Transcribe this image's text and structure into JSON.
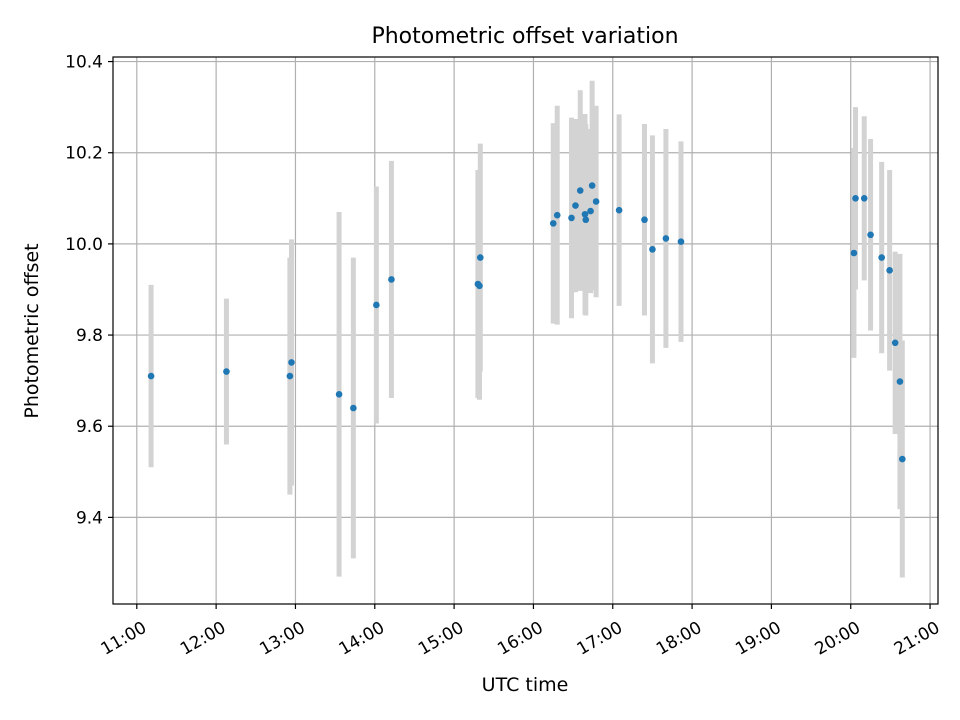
{
  "chart_data": {
    "type": "scatter",
    "title": "Photometric offset variation",
    "xlabel": "UTC time",
    "ylabel": "Photometric offset",
    "x_unit": "hours",
    "xlim": [
      10.7,
      21.1
    ],
    "ylim": [
      9.21,
      10.41
    ],
    "x_ticks": [
      {
        "value": 11,
        "label": "11:00"
      },
      {
        "value": 12,
        "label": "12:00"
      },
      {
        "value": 13,
        "label": "13:00"
      },
      {
        "value": 14,
        "label": "14:00"
      },
      {
        "value": 15,
        "label": "15:00"
      },
      {
        "value": 16,
        "label": "16:00"
      },
      {
        "value": 17,
        "label": "17:00"
      },
      {
        "value": 18,
        "label": "18:00"
      },
      {
        "value": 19,
        "label": "19:00"
      },
      {
        "value": 20,
        "label": "20:00"
      },
      {
        "value": 21,
        "label": "21:00"
      }
    ],
    "y_ticks": [
      {
        "value": 9.4,
        "label": "9.4"
      },
      {
        "value": 9.6,
        "label": "9.6"
      },
      {
        "value": 9.8,
        "label": "9.8"
      },
      {
        "value": 10.0,
        "label": "10.0"
      },
      {
        "value": 10.2,
        "label": "10.2"
      },
      {
        "value": 10.4,
        "label": "10.4"
      }
    ],
    "grid": true,
    "point_color": "#1f77b4",
    "errorbar_color": "#d3d3d3",
    "points": [
      {
        "x": 11.18,
        "y": 9.71,
        "err": 0.2
      },
      {
        "x": 12.13,
        "y": 9.72,
        "err": 0.16
      },
      {
        "x": 12.93,
        "y": 9.71,
        "err": 0.26
      },
      {
        "x": 12.95,
        "y": 9.74,
        "err": 0.27
      },
      {
        "x": 13.55,
        "y": 9.67,
        "err": 0.4
      },
      {
        "x": 13.73,
        "y": 9.64,
        "err": 0.33
      },
      {
        "x": 14.02,
        "y": 9.866,
        "err": 0.26
      },
      {
        "x": 14.21,
        "y": 9.922,
        "err": 0.26
      },
      {
        "x": 15.3,
        "y": 9.912,
        "err": 0.25
      },
      {
        "x": 15.32,
        "y": 9.908,
        "err": 0.25
      },
      {
        "x": 15.33,
        "y": 9.97,
        "err": 0.25
      },
      {
        "x": 16.25,
        "y": 10.045,
        "err": 0.22
      },
      {
        "x": 16.3,
        "y": 10.063,
        "err": 0.24
      },
      {
        "x": 16.48,
        "y": 10.057,
        "err": 0.22
      },
      {
        "x": 16.53,
        "y": 10.084,
        "err": 0.19
      },
      {
        "x": 16.59,
        "y": 10.117,
        "err": 0.22
      },
      {
        "x": 16.65,
        "y": 10.065,
        "err": 0.22
      },
      {
        "x": 16.66,
        "y": 10.053,
        "err": 0.21
      },
      {
        "x": 16.72,
        "y": 10.072,
        "err": 0.18
      },
      {
        "x": 16.74,
        "y": 10.128,
        "err": 0.23
      },
      {
        "x": 16.79,
        "y": 10.093,
        "err": 0.21
      },
      {
        "x": 17.08,
        "y": 10.074,
        "err": 0.21
      },
      {
        "x": 17.4,
        "y": 10.053,
        "err": 0.21
      },
      {
        "x": 17.5,
        "y": 9.988,
        "err": 0.25
      },
      {
        "x": 17.67,
        "y": 10.012,
        "err": 0.24
      },
      {
        "x": 17.86,
        "y": 10.005,
        "err": 0.22
      },
      {
        "x": 20.04,
        "y": 9.98,
        "err": 0.23
      },
      {
        "x": 20.06,
        "y": 10.1,
        "err": 0.2
      },
      {
        "x": 20.17,
        "y": 10.1,
        "err": 0.18
      },
      {
        "x": 20.25,
        "y": 10.02,
        "err": 0.21
      },
      {
        "x": 20.39,
        "y": 9.97,
        "err": 0.21
      },
      {
        "x": 20.49,
        "y": 9.942,
        "err": 0.22
      },
      {
        "x": 20.56,
        "y": 9.783,
        "err": 0.2
      },
      {
        "x": 20.62,
        "y": 9.698,
        "err": 0.28
      },
      {
        "x": 20.65,
        "y": 9.528,
        "err": 0.26
      }
    ]
  }
}
